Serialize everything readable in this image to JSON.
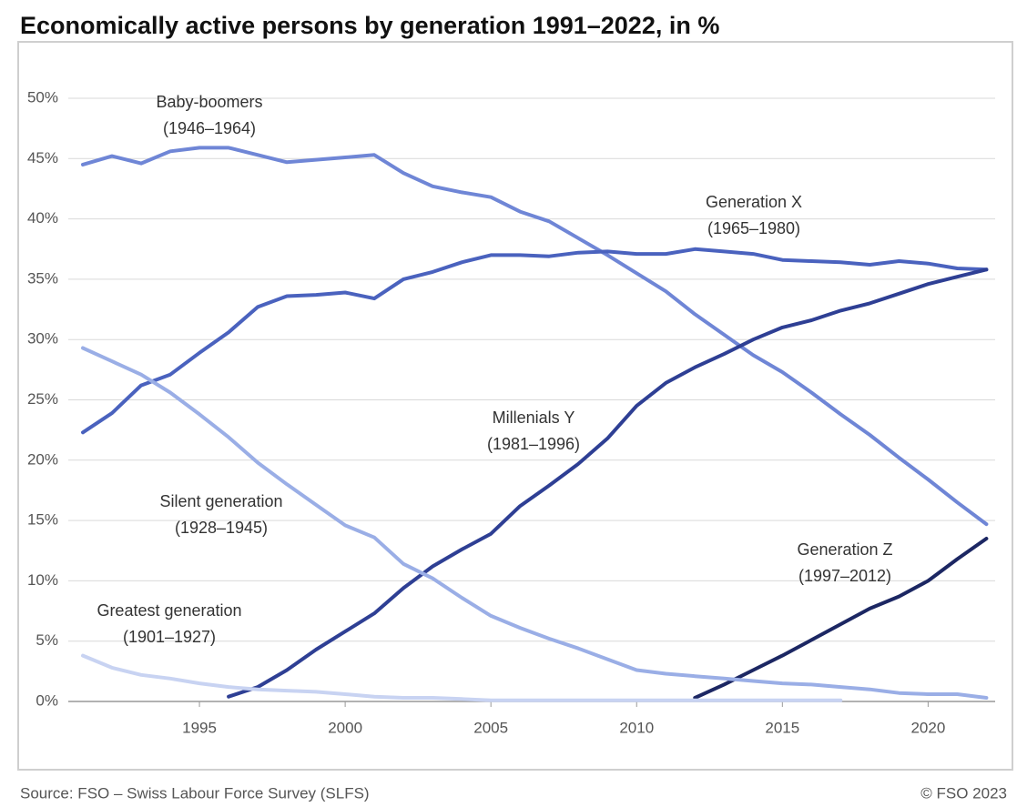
{
  "chart_data": {
    "type": "line",
    "title": "Economically active persons by generation 1991–2022, in %",
    "source": "Source: FSO – Swiss Labour Force Survey (SLFS)",
    "copyright": "© FSO 2023",
    "x": [
      1991,
      1992,
      1993,
      1994,
      1995,
      1996,
      1997,
      1998,
      1999,
      2000,
      2001,
      2002,
      2003,
      2004,
      2005,
      2006,
      2007,
      2008,
      2009,
      2010,
      2011,
      2012,
      2013,
      2014,
      2015,
      2016,
      2017,
      2018,
      2019,
      2020,
      2021,
      2022
    ],
    "xlim": [
      1990.5,
      2022.3
    ],
    "xticks": [
      1995,
      2000,
      2005,
      2010,
      2015,
      2020
    ],
    "ylim": [
      0,
      50
    ],
    "yticks": [
      {
        "value": 0,
        "label": "0%"
      },
      {
        "value": 5,
        "label": "5%"
      },
      {
        "value": 10,
        "label": "10%"
      },
      {
        "value": 15,
        "label": "15%"
      },
      {
        "value": 20,
        "label": "20%"
      },
      {
        "value": 25,
        "label": "25%"
      },
      {
        "value": 30,
        "label": "30%"
      },
      {
        "value": 35,
        "label": "35%"
      },
      {
        "value": 40,
        "label": "40%"
      },
      {
        "value": 45,
        "label": "45%"
      },
      {
        "value": 50,
        "label": "50%"
      }
    ],
    "grid": true,
    "series": [
      {
        "name": "Baby-boomers",
        "period": "(1946–1964)",
        "color": "#6f86d6",
        "values": [
          44.5,
          45.2,
          44.6,
          45.6,
          45.9,
          45.9,
          45.3,
          44.7,
          44.9,
          45.1,
          45.3,
          43.8,
          42.7,
          42.2,
          41.8,
          40.6,
          39.8,
          38.4,
          37.0,
          35.5,
          34.0,
          32.1,
          30.4,
          28.7,
          27.3,
          25.6,
          23.8,
          22.1,
          20.2,
          18.4,
          16.5,
          14.7
        ]
      },
      {
        "name": "Generation X",
        "period": "(1965–1980)",
        "color": "#4a62be",
        "values": [
          22.3,
          23.9,
          26.2,
          27.1,
          28.9,
          30.6,
          32.7,
          33.6,
          33.7,
          33.9,
          33.4,
          35.0,
          35.6,
          36.4,
          37.0,
          37.0,
          36.9,
          37.2,
          37.3,
          37.1,
          37.1,
          37.5,
          37.3,
          37.1,
          36.6,
          36.5,
          36.4,
          36.2,
          36.5,
          36.3,
          35.9,
          35.8
        ]
      },
      {
        "name": "Millenials Y",
        "period": "(1981–1996)",
        "color": "#2e3f94",
        "values": [
          null,
          null,
          null,
          null,
          null,
          0.4,
          1.2,
          2.6,
          4.3,
          5.8,
          7.3,
          9.4,
          11.2,
          12.6,
          13.9,
          16.2,
          17.9,
          19.7,
          21.8,
          24.5,
          26.4,
          27.7,
          28.8,
          30.0,
          31.0,
          31.6,
          32.4,
          33.0,
          33.8,
          34.6,
          35.2,
          35.8
        ]
      },
      {
        "name": "Generation Z",
        "period": "(1997–2012)",
        "color": "#1c2763",
        "values": [
          null,
          null,
          null,
          null,
          null,
          null,
          null,
          null,
          null,
          null,
          null,
          null,
          null,
          null,
          null,
          null,
          null,
          null,
          null,
          null,
          null,
          0.3,
          1.4,
          2.6,
          3.8,
          5.1,
          6.4,
          7.7,
          8.7,
          10.0,
          11.8,
          13.5
        ]
      },
      {
        "name": "Silent generation",
        "period": "(1928–1945)",
        "color": "#9aaee6",
        "values": [
          29.3,
          28.2,
          27.1,
          25.6,
          23.8,
          21.9,
          19.8,
          18.0,
          16.3,
          14.6,
          13.6,
          11.4,
          10.2,
          8.6,
          7.1,
          6.1,
          5.2,
          4.4,
          3.5,
          2.6,
          2.3,
          2.1,
          1.9,
          1.7,
          1.5,
          1.4,
          1.2,
          1.0,
          0.7,
          0.6,
          0.6,
          0.3
        ]
      },
      {
        "name": "Greatest generation",
        "period": "(1901–1927)",
        "color": "#c8d3f2",
        "values": [
          3.8,
          2.8,
          2.2,
          1.9,
          1.5,
          1.2,
          1.0,
          0.9,
          0.8,
          0.6,
          0.4,
          0.3,
          0.3,
          0.2,
          0.1,
          0.1,
          0.1,
          0.1,
          0.1,
          0.1,
          0.1,
          0.1,
          0.1,
          0.1,
          0.1,
          0.1,
          0.1,
          null,
          null,
          null,
          null,
          null
        ]
      }
    ]
  }
}
